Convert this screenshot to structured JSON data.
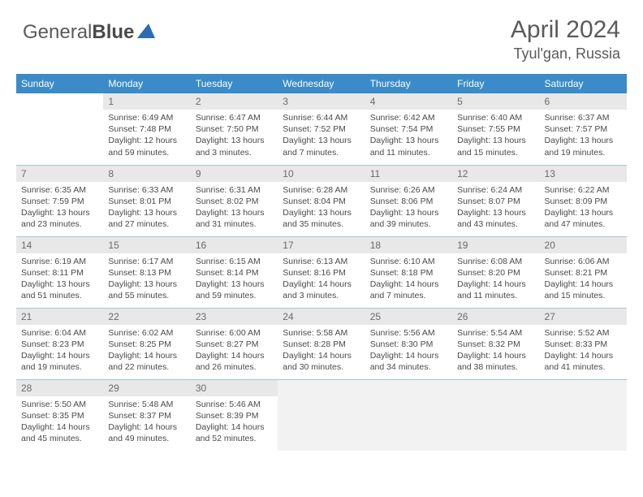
{
  "logo": {
    "general": "General",
    "blue": "Blue"
  },
  "title": {
    "month": "April 2024",
    "location": "Tyul'gan, Russia"
  },
  "colors": {
    "header_bg": "#3b8bc8",
    "text": "#5a5a5a",
    "daynum_bg": "#e8e8e8",
    "border": "#a8c4d8",
    "logo_triangle": "#2a6db0"
  },
  "weekdays": [
    "Sunday",
    "Monday",
    "Tuesday",
    "Wednesday",
    "Thursday",
    "Friday",
    "Saturday"
  ],
  "weeks": [
    [
      {
        "blank": true
      },
      {
        "n": "1",
        "sr": "6:49 AM",
        "ss": "7:48 PM",
        "dl": "12 hours and 59 minutes."
      },
      {
        "n": "2",
        "sr": "6:47 AM",
        "ss": "7:50 PM",
        "dl": "13 hours and 3 minutes."
      },
      {
        "n": "3",
        "sr": "6:44 AM",
        "ss": "7:52 PM",
        "dl": "13 hours and 7 minutes."
      },
      {
        "n": "4",
        "sr": "6:42 AM",
        "ss": "7:54 PM",
        "dl": "13 hours and 11 minutes."
      },
      {
        "n": "5",
        "sr": "6:40 AM",
        "ss": "7:55 PM",
        "dl": "13 hours and 15 minutes."
      },
      {
        "n": "6",
        "sr": "6:37 AM",
        "ss": "7:57 PM",
        "dl": "13 hours and 19 minutes."
      }
    ],
    [
      {
        "n": "7",
        "sr": "6:35 AM",
        "ss": "7:59 PM",
        "dl": "13 hours and 23 minutes."
      },
      {
        "n": "8",
        "sr": "6:33 AM",
        "ss": "8:01 PM",
        "dl": "13 hours and 27 minutes."
      },
      {
        "n": "9",
        "sr": "6:31 AM",
        "ss": "8:02 PM",
        "dl": "13 hours and 31 minutes."
      },
      {
        "n": "10",
        "sr": "6:28 AM",
        "ss": "8:04 PM",
        "dl": "13 hours and 35 minutes."
      },
      {
        "n": "11",
        "sr": "6:26 AM",
        "ss": "8:06 PM",
        "dl": "13 hours and 39 minutes."
      },
      {
        "n": "12",
        "sr": "6:24 AM",
        "ss": "8:07 PM",
        "dl": "13 hours and 43 minutes."
      },
      {
        "n": "13",
        "sr": "6:22 AM",
        "ss": "8:09 PM",
        "dl": "13 hours and 47 minutes."
      }
    ],
    [
      {
        "n": "14",
        "sr": "6:19 AM",
        "ss": "8:11 PM",
        "dl": "13 hours and 51 minutes."
      },
      {
        "n": "15",
        "sr": "6:17 AM",
        "ss": "8:13 PM",
        "dl": "13 hours and 55 minutes."
      },
      {
        "n": "16",
        "sr": "6:15 AM",
        "ss": "8:14 PM",
        "dl": "13 hours and 59 minutes."
      },
      {
        "n": "17",
        "sr": "6:13 AM",
        "ss": "8:16 PM",
        "dl": "14 hours and 3 minutes."
      },
      {
        "n": "18",
        "sr": "6:10 AM",
        "ss": "8:18 PM",
        "dl": "14 hours and 7 minutes."
      },
      {
        "n": "19",
        "sr": "6:08 AM",
        "ss": "8:20 PM",
        "dl": "14 hours and 11 minutes."
      },
      {
        "n": "20",
        "sr": "6:06 AM",
        "ss": "8:21 PM",
        "dl": "14 hours and 15 minutes."
      }
    ],
    [
      {
        "n": "21",
        "sr": "6:04 AM",
        "ss": "8:23 PM",
        "dl": "14 hours and 19 minutes."
      },
      {
        "n": "22",
        "sr": "6:02 AM",
        "ss": "8:25 PM",
        "dl": "14 hours and 22 minutes."
      },
      {
        "n": "23",
        "sr": "6:00 AM",
        "ss": "8:27 PM",
        "dl": "14 hours and 26 minutes."
      },
      {
        "n": "24",
        "sr": "5:58 AM",
        "ss": "8:28 PM",
        "dl": "14 hours and 30 minutes."
      },
      {
        "n": "25",
        "sr": "5:56 AM",
        "ss": "8:30 PM",
        "dl": "14 hours and 34 minutes."
      },
      {
        "n": "26",
        "sr": "5:54 AM",
        "ss": "8:32 PM",
        "dl": "14 hours and 38 minutes."
      },
      {
        "n": "27",
        "sr": "5:52 AM",
        "ss": "8:33 PM",
        "dl": "14 hours and 41 minutes."
      }
    ],
    [
      {
        "n": "28",
        "sr": "5:50 AM",
        "ss": "8:35 PM",
        "dl": "14 hours and 45 minutes."
      },
      {
        "n": "29",
        "sr": "5:48 AM",
        "ss": "8:37 PM",
        "dl": "14 hours and 49 minutes."
      },
      {
        "n": "30",
        "sr": "5:46 AM",
        "ss": "8:39 PM",
        "dl": "14 hours and 52 minutes."
      },
      {
        "tail": true
      },
      {
        "tail": true
      },
      {
        "tail": true
      },
      {
        "tail": true
      }
    ]
  ],
  "labels": {
    "sunrise": "Sunrise:",
    "sunset": "Sunset:",
    "daylight": "Daylight:"
  }
}
